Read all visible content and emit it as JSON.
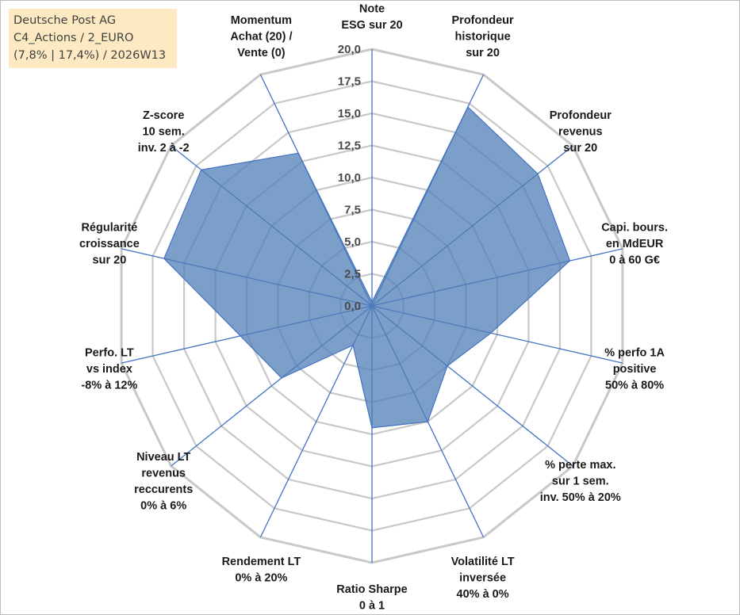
{
  "title_box": {
    "line1": "Deutsche Post AG",
    "line2": "C4_Actions / 2_EURO",
    "line3": "(7,8% | 17,4%) / 2026W13"
  },
  "colors": {
    "fill": "#4f7fb5",
    "fill_opacity": 0.75,
    "series_line": "#4472c4",
    "spoke": "#4472c4",
    "grid": "#c8c8c8",
    "title_bg": "#fde9c2"
  },
  "chart_data": {
    "type": "radar",
    "title": "",
    "r_range": [
      0,
      20
    ],
    "tick_labels": [
      "0,0",
      "2,5",
      "5,0",
      "7,5",
      "10,0",
      "12,5",
      "15,0",
      "17,5",
      "20,0"
    ],
    "axes": [
      [
        "Note",
        "ESG sur 20"
      ],
      [
        "Profondeur",
        "historique",
        "sur 20"
      ],
      [
        "Profondeur",
        "revenus",
        "sur 20"
      ],
      [
        "Capi. bours.",
        "en MdEUR",
        "0 à 60 G€"
      ],
      [
        "% perfo 1A",
        "positive",
        "50% à 80%"
      ],
      [
        "% perte max.",
        "sur 1 sem.",
        "inv. 50% à 20%"
      ],
      [
        "Volatilité LT",
        "inversée",
        "40% à 0%"
      ],
      [
        "Ratio Sharpe",
        "0 à 1"
      ],
      [
        "Rendement LT",
        "0% à 20%"
      ],
      [
        "Niveau LT",
        "revenus",
        "reccurents",
        "0% à 6%"
      ],
      [
        "Perfo. LT",
        "vs index",
        "-8% à 12%"
      ],
      [
        "Régularité",
        "croissance",
        "sur 20"
      ],
      [
        "Z-score",
        "10 sem.",
        "inv. 2 à -2"
      ],
      [
        "Momentum",
        "Achat (20) /",
        "Vente (0)"
      ]
    ],
    "series": [
      {
        "name": "Deutsche Post AG",
        "values": [
          0.3,
          17.2,
          16.5,
          15.8,
          9.5,
          7.5,
          10.0,
          9.5,
          3.4,
          9.0,
          10.5,
          16.6,
          17.0,
          13.2
        ]
      }
    ]
  }
}
